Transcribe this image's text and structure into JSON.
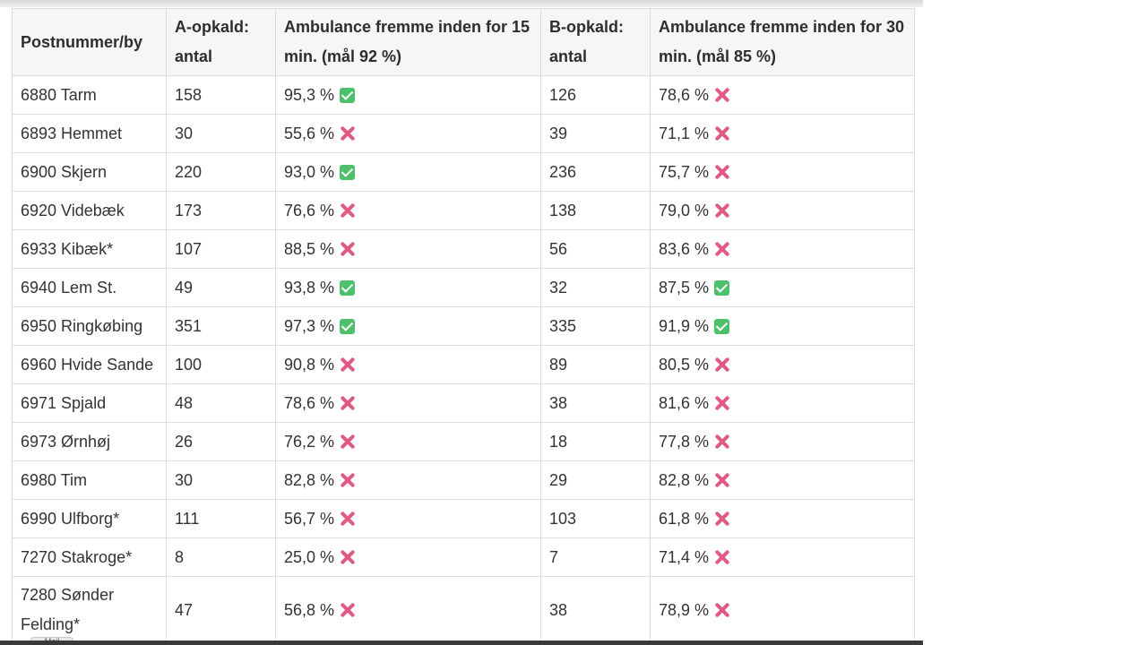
{
  "table": {
    "headers": [
      "Postnummer/by",
      "A-opkald: antal",
      "Ambulance fremme inden for 15 min. (mål 92 %)",
      "B-opkald: antal",
      "Ambulance fremme inden for 30 min. (mål 85 %)"
    ],
    "rows": [
      {
        "place": "6880 Tarm",
        "a_count": "158",
        "a_pct": "95,3 %",
        "a_icon": "check-icon",
        "b_count": "126",
        "b_pct": "78,6 %",
        "b_icon": "cross-icon"
      },
      {
        "place": "6893 Hemmet",
        "a_count": "30",
        "a_pct": "55,6 %",
        "a_icon": "cross-icon",
        "b_count": "39",
        "b_pct": "71,1 %",
        "b_icon": "cross-icon"
      },
      {
        "place": "6900 Skjern",
        "a_count": "220",
        "a_pct": "93,0 %",
        "a_icon": "check-icon",
        "b_count": "236",
        "b_pct": "75,7 %",
        "b_icon": "cross-icon"
      },
      {
        "place": "6920 Videbæk",
        "a_count": "173",
        "a_pct": "76,6 %",
        "a_icon": "cross-icon",
        "b_count": "138",
        "b_pct": "79,0 %",
        "b_icon": "cross-icon"
      },
      {
        "place": "6933 Kibæk*",
        "a_count": "107",
        "a_pct": "88,5 %",
        "a_icon": "cross-icon",
        "b_count": "56",
        "b_pct": "83,6 %",
        "b_icon": "cross-icon"
      },
      {
        "place": "6940 Lem St.",
        "a_count": "49",
        "a_pct": "93,8 %",
        "a_icon": "check-icon",
        "b_count": "32",
        "b_pct": "87,5 %",
        "b_icon": "check-icon"
      },
      {
        "place": "6950 Ringkøbing",
        "a_count": "351",
        "a_pct": "97,3 %",
        "a_icon": "check-icon",
        "b_count": "335",
        "b_pct": "91,9 %",
        "b_icon": "check-icon"
      },
      {
        "place": "6960 Hvide Sande",
        "a_count": "100",
        "a_pct": "90,8 %",
        "a_icon": "cross-icon",
        "b_count": "89",
        "b_pct": "80,5 %",
        "b_icon": "cross-icon"
      },
      {
        "place": "6971 Spjald",
        "a_count": "48",
        "a_pct": "78,6 %",
        "a_icon": "cross-icon",
        "b_count": "38",
        "b_pct": "81,6 %",
        "b_icon": "cross-icon"
      },
      {
        "place": "6973 Ørnhøj",
        "a_count": "26",
        "a_pct": "76,2 %",
        "a_icon": "cross-icon",
        "b_count": "18",
        "b_pct": "77,8 %",
        "b_icon": "cross-icon"
      },
      {
        "place": "6980 Tim",
        "a_count": "30",
        "a_pct": "82,8 %",
        "a_icon": "cross-icon",
        "b_count": "29",
        "b_pct": "82,8 %",
        "b_icon": "cross-icon"
      },
      {
        "place": "6990 Ulfborg*",
        "a_count": "111",
        "a_pct": "56,7 %",
        "a_icon": "cross-icon",
        "b_count": "103",
        "b_pct": "61,8 %",
        "b_icon": "cross-icon"
      },
      {
        "place": "7270 Stakroge*",
        "a_count": "8",
        "a_pct": "25,0 %",
        "a_icon": "cross-icon",
        "b_count": "7",
        "b_pct": "71,4 %",
        "b_icon": "cross-icon"
      },
      {
        "place": "7280 Sønder Felding*",
        "a_count": "47",
        "a_pct": "56,8 %",
        "a_icon": "cross-icon",
        "b_count": "38",
        "b_pct": "78,9 %",
        "b_icon": "cross-icon"
      }
    ]
  },
  "mail_tab": {
    "label": "Mail"
  }
}
